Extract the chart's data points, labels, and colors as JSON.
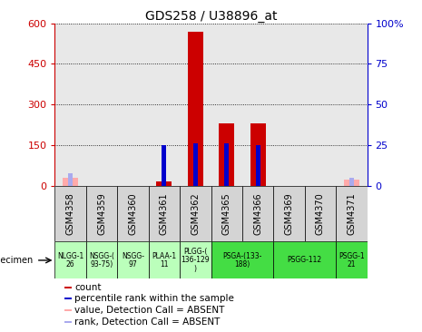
{
  "title": "GDS258 / U38896_at",
  "samples": [
    "GSM4358",
    "GSM4359",
    "GSM4360",
    "GSM4361",
    "GSM4362",
    "GSM4365",
    "GSM4366",
    "GSM4369",
    "GSM4370",
    "GSM4371"
  ],
  "count_values": [
    30,
    2,
    2,
    18,
    570,
    230,
    230,
    2,
    2,
    22
  ],
  "rank_values_pct": [
    8,
    1,
    1,
    25,
    26,
    26,
    25,
    1,
    1,
    5
  ],
  "absent_mask": [
    true,
    false,
    false,
    false,
    false,
    false,
    false,
    false,
    false,
    true
  ],
  "ylim_left": [
    0,
    600
  ],
  "ylim_right": [
    0,
    100
  ],
  "yticks_left": [
    0,
    150,
    300,
    450,
    600
  ],
  "yticks_right": [
    0,
    25,
    50,
    75,
    100
  ],
  "bar_color": "#cc0000",
  "rank_color": "#0000cc",
  "absent_bar_color": "#ffaaaa",
  "absent_rank_color": "#aaaaee",
  "plot_bg": "#e8e8e8",
  "left_axis_color": "#cc0000",
  "right_axis_color": "#0000cc",
  "group_data": [
    {
      "start": 0,
      "end": 1,
      "color": "#bbffbb",
      "line1": "NLGG-1",
      "line2": "26"
    },
    {
      "start": 1,
      "end": 2,
      "color": "#bbffbb",
      "line1": "NSGG-(",
      "line2": "93-75)"
    },
    {
      "start": 2,
      "end": 3,
      "color": "#bbffbb",
      "line1": "NSGG-",
      "line2": "97"
    },
    {
      "start": 3,
      "end": 4,
      "color": "#bbffbb",
      "line1": "PLAA-1",
      "line2": "11"
    },
    {
      "start": 4,
      "end": 5,
      "color": "#bbffbb",
      "line1": "PLGG-(",
      "line2": "136-129",
      "line3": ")"
    },
    {
      "start": 5,
      "end": 7,
      "color": "#44dd44",
      "line1": "PSGA-(133-",
      "line2": "188)"
    },
    {
      "start": 7,
      "end": 9,
      "color": "#44dd44",
      "line1": "PSGG-112",
      "line2": ""
    },
    {
      "start": 9,
      "end": 10,
      "color": "#44dd44",
      "line1": "PSGG-1",
      "line2": "21"
    }
  ],
  "legend_items": [
    {
      "color": "#cc0000",
      "label": "count"
    },
    {
      "color": "#0000cc",
      "label": "percentile rank within the sample"
    },
    {
      "color": "#ffaaaa",
      "label": "value, Detection Call = ABSENT"
    },
    {
      "color": "#aaaaee",
      "label": "rank, Detection Call = ABSENT"
    }
  ]
}
